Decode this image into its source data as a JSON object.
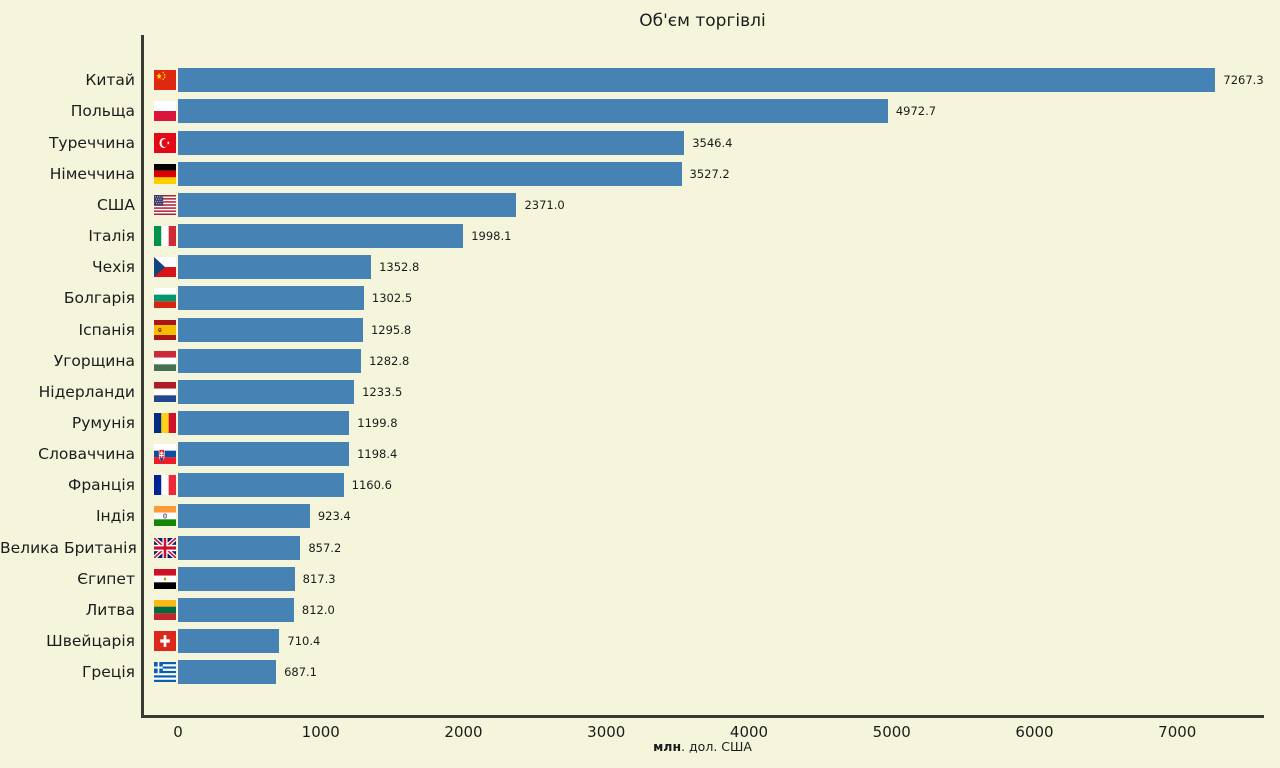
{
  "header": {
    "title": "Об'єм торгівлі"
  },
  "xaxis": {
    "label_bold": "млн",
    "label_rest": ". дол. США",
    "ticks": [
      "0",
      "1000",
      "2000",
      "3000",
      "4000",
      "5000",
      "6000",
      "7000"
    ]
  },
  "chart_data": {
    "type": "bar",
    "orientation": "horizontal",
    "title": "Об'єм торгівлі",
    "xlabel": "млн. дол. США",
    "categories": [
      "Китай",
      "Польща",
      "Туреччина",
      "Німеччина",
      "США",
      "Італія",
      "Чехія",
      "Болгарія",
      "Іспанія",
      "Угорщина",
      "Нідерланди",
      "Румунія",
      "Словаччина",
      "Франція",
      "Індія",
      "Велика Британія",
      "Єгипет",
      "Литва",
      "Швейцарія",
      "Греція"
    ],
    "values": [
      7267.3,
      4972.7,
      3546.4,
      3527.2,
      2371.0,
      1998.1,
      1352.8,
      1302.5,
      1295.8,
      1282.8,
      1233.5,
      1199.8,
      1198.4,
      1160.6,
      923.4,
      857.2,
      817.3,
      812.0,
      710.4,
      687.1
    ],
    "value_labels": [
      "7267.3",
      "4972.7",
      "3546.4",
      "3527.2",
      "2371.0",
      "1998.1",
      "1352.8",
      "1302.5",
      "1295.8",
      "1282.8",
      "1233.5",
      "1199.8",
      "1198.4",
      "1160.6",
      "923.4",
      "857.2",
      "817.3",
      "812.0",
      "710.4",
      "687.1"
    ],
    "flags": [
      "cn",
      "pl",
      "tr",
      "de",
      "us",
      "it",
      "cz",
      "bg",
      "es",
      "hu",
      "nl",
      "ro",
      "sk",
      "fr",
      "in",
      "gb",
      "eg",
      "lt",
      "ch",
      "gr"
    ],
    "xticks": [
      0,
      1000,
      2000,
      3000,
      4000,
      5000,
      6000,
      7000
    ],
    "xlim": [
      0,
      7610
    ],
    "grid": false,
    "legend": "none",
    "colors": {
      "bar": "#4682b4",
      "background": "#f5f5dc",
      "axis": "#3a3a35",
      "text": "#1c1c1c"
    }
  }
}
